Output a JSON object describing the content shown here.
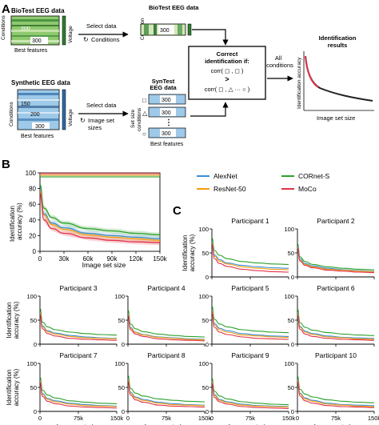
{
  "panel_a": {
    "letter": "A",
    "biotest_title": "BioTest EEG data",
    "biotest_left_label": "Conditions",
    "biotest_tick_200": "200",
    "biotest_tick_300": "300",
    "biotest_bottom_label": "Best features",
    "biotest_voltage": "Voltage",
    "select_data_1": "Select data",
    "conditions_label": "Conditions",
    "biotest_box_title": "BioTest EEG data",
    "condition_label": "Condition",
    "biotest_box_300": "300",
    "synthetic_title": "Synthetic EEG data",
    "synthetic_left_label": "Conditions",
    "synthetic_tick_150": "150",
    "synthetic_tick_200": "200",
    "synthetic_tick_300": "300",
    "synthetic_bottom_label": "Best features",
    "synthetic_voltage": "Voltage",
    "select_data_2": "Select data",
    "image_set_1": "Image set",
    "image_set_2": "sizes",
    "syntest_title": "SynTest",
    "syntest_subtitle": "EEG data",
    "set_size_label": "Set size",
    "conditions_label_2": "conditions",
    "syntest_300_a": "300",
    "syntest_300_b": "300",
    "syntest_300_c": "300",
    "syntest_dots": "⋮",
    "syntest_best_features": "Best features",
    "correct_1": "Correct",
    "correct_2": "identification if:",
    "corr_1": "corr( ◻ , ◻ )",
    "gt_sign": ">",
    "corr_2": "corr( ◻ , △ ··· ○ )",
    "all_1": "All",
    "all_2": "conditions",
    "results_1": "Identification",
    "results_2": "results",
    "results_ylabel": "Identification accuracy",
    "results_xlabel": "Image set size"
  },
  "panel_b": {
    "letter": "B",
    "ylabel_1": "Identification",
    "ylabel_2": "accuracy (%)",
    "xlabel": "Image set size",
    "yticks": [
      "0",
      "20",
      "40",
      "60",
      "80",
      "100"
    ],
    "xticks": [
      "0",
      "30k",
      "60k",
      "90k",
      "120k",
      "150k"
    ]
  },
  "panel_c": {
    "letter": "C",
    "ylabel_1": "Identification",
    "ylabel_2": "accuracy (%)",
    "xlabel": "Image set size",
    "yticks": [
      "0",
      "50",
      "100"
    ],
    "xticks": [
      "0",
      "75k",
      "150k"
    ],
    "participants": [
      "Participant 1",
      "Participant 2",
      "Participant 3",
      "Participant 4",
      "Participant 5",
      "Participant 6",
      "Participant 7",
      "Participant 8",
      "Participant 9",
      "Participant 10"
    ]
  },
  "legend": {
    "items": [
      {
        "name": "AlexNet",
        "color": "#3b8fd4"
      },
      {
        "name": "CORnet-S",
        "color": "#2ca02c"
      },
      {
        "name": "ResNet-50",
        "color": "#f39c12"
      },
      {
        "name": "MoCo",
        "color": "#e0334a"
      }
    ]
  },
  "chart_data": [
    {
      "type": "line",
      "panel": "B",
      "x": [
        0,
        5000,
        15000,
        30000,
        60000,
        90000,
        120000,
        150000
      ],
      "xlim": [
        0,
        150000
      ],
      "ylim": [
        0,
        100
      ],
      "xlabel": "Image set size",
      "ylabel": "Identification accuracy (%)",
      "series": [
        {
          "name": "CORnet-S",
          "color": "#2ca02c",
          "values": [
            85,
            55,
            43,
            36,
            29,
            26,
            23,
            21
          ]
        },
        {
          "name": "AlexNet",
          "color": "#3b8fd4",
          "values": [
            80,
            48,
            36,
            30,
            23,
            20,
            18,
            16
          ]
        },
        {
          "name": "ResNet-50",
          "color": "#f39c12",
          "values": [
            78,
            46,
            34,
            28,
            21,
            18,
            16,
            14
          ]
        },
        {
          "name": "MoCo",
          "color": "#e0334a",
          "values": [
            74,
            40,
            29,
            23,
            17,
            14,
            12,
            11
          ]
        }
      ],
      "top_lines": [
        99,
        97,
        95
      ]
    },
    {
      "type": "line",
      "panel": "C",
      "x": [
        0,
        5000,
        15000,
        30000,
        60000,
        90000,
        120000,
        150000
      ],
      "xlim": [
        0,
        150000
      ],
      "ylim": [
        0,
        100
      ],
      "participants": [
        {
          "name": "Participant 1",
          "series": [
            [
              82,
              55,
              45,
              38,
              32,
              29,
              27,
              26
            ],
            [
              75,
              46,
              36,
              29,
              24,
              21,
              19,
              18
            ],
            [
              72,
              43,
              33,
              27,
              21,
              18,
              16,
              15
            ],
            [
              68,
              38,
              28,
              22,
              16,
              13,
              11,
              10
            ]
          ]
        },
        {
          "name": "Participant 2",
          "series": [
            [
              70,
              42,
              32,
              26,
              21,
              18,
              16,
              15
            ],
            [
              65,
              38,
              28,
              23,
              18,
              15,
              13,
              12
            ],
            [
              62,
              35,
              26,
              21,
              16,
              14,
              12,
              11
            ],
            [
              60,
              33,
              24,
              19,
              14,
              12,
              10,
              9
            ]
          ]
        },
        {
          "name": "Participant 3",
          "series": [
            [
              75,
              46,
              36,
              30,
              25,
              22,
              20,
              19
            ],
            [
              68,
              38,
              28,
              23,
              18,
              15,
              13,
              12
            ],
            [
              66,
              36,
              26,
              21,
              16,
              13,
              12,
              11
            ],
            [
              62,
              32,
              22,
              17,
              12,
              10,
              9,
              8
            ]
          ]
        },
        {
          "name": "Participant 4",
          "series": [
            [
              72,
              42,
              32,
              26,
              21,
              18,
              16,
              15
            ],
            [
              65,
              35,
              25,
              20,
              15,
              13,
              11,
              10
            ],
            [
              63,
              33,
              24,
              19,
              14,
              12,
              10,
              9
            ],
            [
              60,
              30,
              21,
              16,
              11,
              9,
              8,
              7
            ]
          ]
        },
        {
          "name": "Participant 5",
          "series": [
            [
              80,
              52,
              42,
              36,
              30,
              27,
              25,
              24
            ],
            [
              72,
              43,
              33,
              28,
              22,
              19,
              17,
              16
            ],
            [
              70,
              40,
              30,
              25,
              19,
              17,
              15,
              14
            ],
            [
              65,
              35,
              25,
              20,
              15,
              12,
              11,
              10
            ]
          ]
        },
        {
          "name": "Participant 6",
          "series": [
            [
              74,
              45,
              35,
              29,
              24,
              21,
              19,
              18
            ],
            [
              66,
              37,
              27,
              22,
              17,
              14,
              13,
              12
            ],
            [
              64,
              35,
              25,
              20,
              15,
              13,
              11,
              10
            ],
            [
              60,
              31,
              21,
              16,
              12,
              10,
              9,
              8
            ]
          ]
        },
        {
          "name": "Participant 7",
          "series": [
            [
              72,
              44,
              34,
              28,
              22,
              19,
              17,
              16
            ],
            [
              66,
              37,
              27,
              22,
              17,
              14,
              12,
              11
            ],
            [
              64,
              35,
              25,
              20,
              15,
              12,
              11,
              10
            ],
            [
              60,
              31,
              21,
              16,
              11,
              9,
              8,
              7
            ]
          ]
        },
        {
          "name": "Participant 8",
          "series": [
            [
              76,
              48,
              38,
              32,
              26,
              23,
              21,
              20
            ],
            [
              69,
              40,
              30,
              25,
              19,
              16,
              14,
              13
            ],
            [
              67,
              38,
              28,
              23,
              17,
              14,
              13,
              12
            ],
            [
              63,
              34,
              24,
              19,
              13,
              11,
              10,
              9
            ]
          ]
        },
        {
          "name": "Participant 9",
          "series": [
            [
              70,
              42,
              32,
              26,
              20,
              17,
              15,
              14
            ],
            [
              64,
              35,
              25,
              20,
              15,
              12,
              11,
              10
            ],
            [
              62,
              33,
              23,
              18,
              13,
              11,
              10,
              9
            ],
            [
              58,
              29,
              20,
              15,
              10,
              8,
              7,
              6
            ]
          ]
        },
        {
          "name": "Participant 10",
          "series": [
            [
              74,
              46,
              36,
              30,
              24,
              21,
              19,
              18
            ],
            [
              67,
              38,
              28,
              23,
              17,
              14,
              13,
              12
            ],
            [
              65,
              36,
              26,
              21,
              15,
              13,
              11,
              10
            ],
            [
              61,
              32,
              22,
              17,
              12,
              10,
              9,
              8
            ]
          ]
        }
      ]
    }
  ]
}
